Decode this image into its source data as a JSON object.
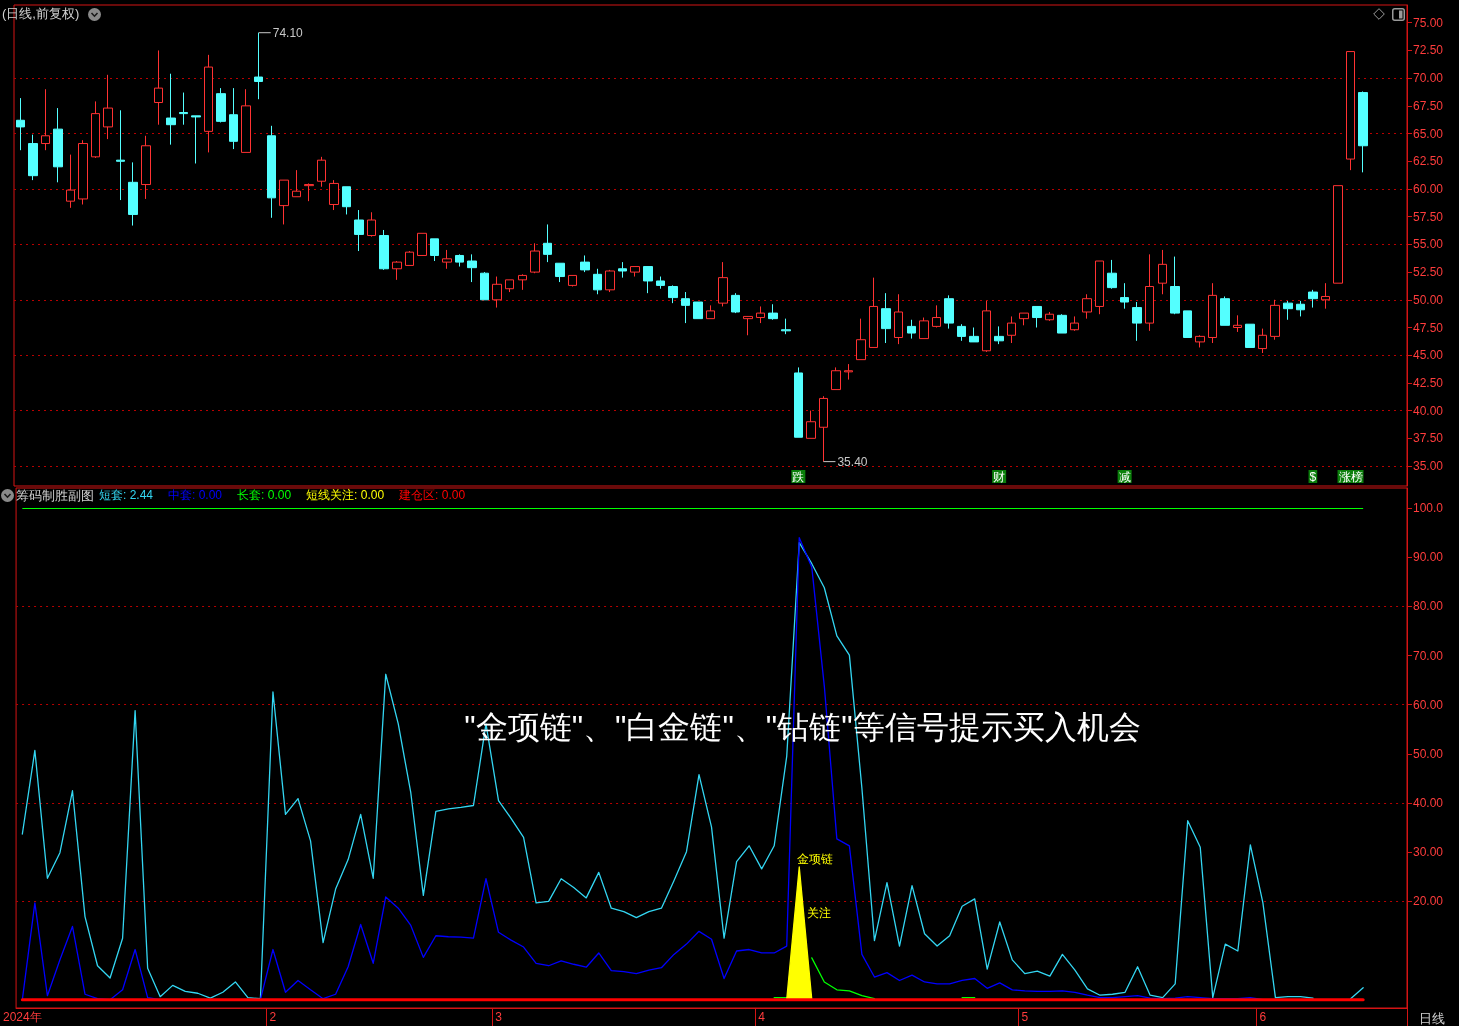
{
  "chart_data": [
    {
      "type": "candlestick",
      "title": "(日线,前复权)",
      "categories": [
        null,
        null,
        null,
        null,
        null,
        null,
        null,
        null,
        null,
        null,
        null,
        null,
        null,
        null,
        null,
        null,
        null,
        null,
        null,
        null,
        null,
        null,
        null,
        null,
        null,
        null,
        null,
        null,
        null,
        null,
        null,
        null,
        null,
        null,
        null,
        null,
        null,
        null,
        null,
        null,
        null,
        null,
        null,
        null,
        null,
        null,
        null,
        null,
        null,
        null,
        null,
        null,
        null,
        null,
        null,
        null,
        null,
        null,
        null,
        null,
        null,
        null,
        "跌",
        null,
        null,
        null,
        null,
        null,
        null,
        null,
        null,
        null,
        null,
        null,
        null,
        null,
        null,
        null,
        "财",
        null,
        null,
        null,
        null,
        null,
        null,
        null,
        null,
        null,
        "减",
        null,
        null,
        null,
        null,
        null,
        null,
        null,
        null,
        null,
        null,
        null,
        null,
        null,
        null,
        "$",
        null,
        null,
        "涨榜",
        null,
        null,
        null,
        null
      ],
      "ohlc": [
        [
          66.2,
          68.2,
          63.5,
          65.6
        ],
        [
          64.1,
          64.9,
          60.8,
          61.2
        ],
        [
          64.1,
          69.0,
          63.5,
          64.8
        ],
        [
          65.4,
          67.3,
          60.6,
          62.0
        ],
        [
          58.9,
          63.1,
          58.3,
          59.9
        ],
        [
          59.1,
          64.4,
          58.6,
          64.1
        ],
        [
          62.9,
          67.9,
          62.8,
          66.8
        ],
        [
          65.6,
          70.3,
          64.5,
          67.3
        ],
        [
          62.6,
          67.1,
          59.0,
          62.5
        ],
        [
          60.6,
          62.4,
          56.7,
          57.7
        ],
        [
          60.4,
          64.8,
          59.1,
          63.9
        ],
        [
          67.8,
          72.5,
          65.8,
          69.1
        ],
        [
          66.4,
          70.4,
          64.0,
          65.8
        ],
        [
          66.9,
          68.7,
          65.8,
          66.8
        ],
        [
          66.6,
          66.6,
          62.3,
          66.5
        ],
        [
          65.2,
          72.1,
          63.3,
          71.0
        ],
        [
          68.6,
          69.1,
          66.0,
          66.1
        ],
        [
          66.7,
          69.1,
          63.6,
          64.3
        ],
        [
          63.3,
          69.0,
          63.3,
          67.5
        ],
        [
          70.1,
          74.1,
          68.1,
          69.7
        ],
        [
          64.8,
          65.7,
          57.4,
          59.2
        ],
        [
          58.5,
          60.8,
          56.8,
          60.8
        ],
        [
          59.3,
          61.7,
          59.3,
          59.8
        ],
        [
          60.3,
          60.5,
          58.9,
          60.4
        ],
        [
          60.7,
          62.9,
          60.2,
          62.6
        ],
        [
          58.6,
          60.8,
          58.1,
          60.5
        ],
        [
          60.2,
          60.2,
          57.7,
          58.4
        ],
        [
          57.2,
          58.1,
          54.4,
          55.9
        ],
        [
          55.8,
          57.9,
          55.7,
          57.2
        ],
        [
          55.8,
          56.3,
          52.7,
          52.8
        ],
        [
          52.8,
          53.5,
          51.8,
          53.4
        ],
        [
          53.1,
          54.4,
          53.1,
          54.3
        ],
        [
          54.0,
          56.0,
          54.0,
          56.0
        ],
        [
          55.5,
          55.5,
          53.5,
          54.0
        ],
        [
          53.4,
          54.5,
          52.8,
          53.7
        ],
        [
          54.0,
          54.1,
          53.0,
          53.4
        ],
        [
          53.5,
          54.1,
          51.6,
          52.9
        ],
        [
          52.4,
          52.5,
          50.0,
          50.0
        ],
        [
          50.0,
          52.1,
          49.3,
          51.4
        ],
        [
          51.0,
          51.8,
          50.7,
          51.8
        ],
        [
          51.8,
          52.3,
          50.9,
          52.2
        ],
        [
          52.5,
          55.1,
          52.4,
          54.4
        ],
        [
          55.1,
          56.8,
          53.4,
          54.1
        ],
        [
          53.3,
          53.3,
          51.6,
          52.1
        ],
        [
          51.3,
          52.2,
          51.2,
          52.2
        ],
        [
          53.4,
          54.0,
          52.5,
          52.7
        ],
        [
          52.3,
          52.8,
          50.5,
          50.9
        ],
        [
          50.9,
          52.7,
          50.7,
          52.6
        ],
        [
          52.8,
          53.4,
          52.0,
          52.6
        ],
        [
          52.5,
          53.0,
          52.1,
          53.0
        ],
        [
          53.0,
          53.0,
          50.6,
          51.7
        ],
        [
          51.7,
          52.1,
          51.0,
          51.3
        ],
        [
          51.2,
          51.3,
          49.7,
          50.2
        ],
        [
          50.1,
          50.7,
          47.9,
          49.5
        ],
        [
          49.8,
          49.8,
          48.3,
          48.3
        ],
        [
          48.3,
          49.5,
          48.3,
          49.0
        ],
        [
          49.7,
          53.4,
          49.4,
          52.0
        ],
        [
          50.4,
          50.6,
          48.8,
          48.9
        ],
        [
          48.3,
          48.5,
          46.8,
          48.5
        ],
        [
          48.4,
          49.4,
          47.9,
          48.8
        ],
        [
          48.8,
          49.6,
          48.2,
          48.3
        ],
        [
          47.3,
          48.3,
          46.9,
          47.2
        ],
        [
          43.4,
          43.9,
          37.6,
          37.6
        ],
        [
          37.5,
          40.0,
          37.5,
          39.0
        ],
        [
          38.5,
          41.3,
          35.4,
          41.1
        ],
        [
          41.9,
          43.9,
          41.9,
          43.6
        ],
        [
          43.5,
          44.2,
          42.8,
          43.6
        ],
        [
          44.6,
          48.3,
          44.6,
          46.4
        ],
        [
          45.7,
          52.0,
          45.7,
          49.4
        ],
        [
          49.2,
          50.6,
          46.1,
          47.4
        ],
        [
          46.6,
          50.5,
          46.0,
          48.9
        ],
        [
          47.6,
          48.2,
          46.5,
          47.0
        ],
        [
          46.5,
          48.4,
          46.5,
          48.1
        ],
        [
          47.6,
          49.5,
          47.5,
          48.4
        ],
        [
          50.1,
          50.4,
          47.4,
          47.9
        ],
        [
          47.6,
          47.8,
          46.3,
          46.7
        ],
        [
          46.7,
          47.5,
          46.2,
          46.2
        ],
        [
          45.4,
          49.9,
          45.3,
          49.0
        ],
        [
          46.7,
          47.6,
          46.0,
          46.3
        ],
        [
          46.8,
          48.5,
          46.1,
          47.9
        ],
        [
          48.3,
          48.8,
          47.7,
          48.8
        ],
        [
          49.4,
          49.4,
          47.5,
          48.4
        ],
        [
          48.2,
          48.9,
          48.1,
          48.7
        ],
        [
          48.6,
          48.7,
          47.0,
          47.0
        ],
        [
          47.3,
          48.5,
          47.2,
          47.9
        ],
        [
          48.9,
          50.5,
          48.3,
          50.1
        ],
        [
          49.4,
          53.5,
          48.7,
          53.5
        ],
        [
          52.4,
          53.6,
          51.0,
          51.1
        ],
        [
          50.2,
          51.5,
          49.2,
          49.8
        ],
        [
          49.3,
          49.8,
          46.3,
          47.9
        ],
        [
          47.9,
          54.1,
          47.2,
          51.2
        ],
        [
          51.5,
          54.5,
          50.5,
          53.2
        ],
        [
          51.2,
          53.9,
          48.7,
          48.8
        ],
        [
          49.0,
          49.0,
          46.6,
          46.6
        ],
        [
          46.2,
          46.8,
          45.7,
          46.7
        ],
        [
          46.6,
          51.5,
          46.1,
          50.4
        ],
        [
          50.1,
          50.3,
          47.7,
          47.7
        ],
        [
          47.5,
          48.6,
          47.1,
          47.7
        ],
        [
          47.8,
          47.8,
          45.7,
          45.7
        ],
        [
          45.6,
          47.4,
          45.2,
          46.8
        ],
        [
          46.7,
          50.0,
          46.4,
          49.5
        ],
        [
          49.7,
          49.9,
          48.2,
          49.2
        ],
        [
          49.6,
          49.9,
          48.5,
          49.1
        ],
        [
          50.7,
          50.9,
          49.3,
          50.1
        ],
        [
          50.0,
          51.5,
          49.2,
          50.3
        ],
        [
          51.5,
          60.3,
          51.5,
          60.3
        ],
        [
          62.7,
          72.4,
          61.7,
          72.4
        ],
        [
          68.7,
          68.8,
          61.5,
          63.9
        ],
        null,
        null,
        null
      ],
      "colors": [
        "#54ffff",
        "#54ffff",
        "#ff3232",
        "#54ffff",
        "#ff3232",
        "#ff3232",
        "#ff3232",
        "#ff3232",
        "#54ffff",
        "#54ffff",
        "#ff3232",
        "#ff3232",
        "#54ffff",
        "#54ffff",
        "#54ffff",
        "#ff3232",
        "#54ffff",
        "#54ffff",
        "#ff3232",
        "#54ffff",
        "#54ffff",
        "#ff3232",
        "#ff3232",
        "#ff3232",
        "#ff3232",
        "#ff3232",
        "#54ffff",
        "#54ffff",
        "#ff3232",
        "#54ffff",
        "#ff3232",
        "#ff3232",
        "#ff3232",
        "#54ffff",
        "#ff3232",
        "#54ffff",
        "#54ffff",
        "#54ffff",
        "#ff3232",
        "#ff3232",
        "#ff3232",
        "#ff3232",
        "#54ffff",
        "#54ffff",
        "#ff3232",
        "#54ffff",
        "#54ffff",
        "#ff3232",
        "#54ffff",
        "#ff3232",
        "#54ffff",
        "#54ffff",
        "#54ffff",
        "#54ffff",
        "#54ffff",
        "#ff3232",
        "#ff3232",
        "#54ffff",
        "#ff3232",
        "#ff3232",
        "#54ffff",
        "#54ffff",
        "#54ffff",
        "#ff3232",
        "#ff3232",
        "#ff3232",
        "#ff3232",
        "#ff3232",
        "#ff3232",
        "#54ffff",
        "#ff3232",
        "#54ffff",
        "#ff3232",
        "#ff3232",
        "#54ffff",
        "#54ffff",
        "#54ffff",
        "#ff3232",
        "#54ffff",
        "#ff3232",
        "#ff3232",
        "#54ffff",
        "#ff3232",
        "#54ffff",
        "#ff3232",
        "#ff3232",
        "#ff3232",
        "#54ffff",
        "#54ffff",
        "#54ffff",
        "#ff3232",
        "#ff3232",
        "#54ffff",
        "#54ffff",
        "#ff3232",
        "#ff3232",
        "#54ffff",
        "#ff3232",
        "#54ffff",
        "#ff3232",
        "#ff3232",
        "#54ffff",
        "#54ffff",
        "#54ffff",
        "#ff3232",
        "#ff3232",
        "#ff3232",
        "#54ffff",
        null,
        null,
        null
      ],
      "value_labels": [
        null,
        null,
        null,
        null,
        null,
        null,
        null,
        null,
        null,
        null,
        null,
        null,
        null,
        null,
        null,
        null,
        null,
        null,
        null,
        "74.10",
        null,
        null,
        null,
        null,
        null,
        null,
        null,
        null,
        null,
        null,
        null,
        null,
        null,
        null,
        null,
        null,
        null,
        null,
        null,
        null,
        null,
        null,
        null,
        null,
        null,
        null,
        null,
        null,
        null,
        null,
        null,
        null,
        null,
        null,
        null,
        null,
        null,
        null,
        null,
        null,
        null,
        null,
        null,
        null,
        "35.40",
        null,
        null,
        null,
        null,
        null,
        null,
        null,
        null,
        null,
        null,
        null,
        null,
        null,
        null,
        null,
        null,
        null,
        null,
        null,
        null,
        null,
        null,
        null,
        null,
        null,
        null,
        null,
        null,
        null,
        null,
        null,
        null,
        null,
        null,
        null,
        null,
        null,
        null,
        null,
        null,
        null,
        null,
        null,
        null,
        null,
        null
      ],
      "ylim": [
        33.2,
        76.6
      ],
      "yticks": [
        {
          "value": 35,
          "label": "35.00"
        },
        {
          "value": 37.5,
          "label": "37.50"
        },
        {
          "value": 40,
          "label": "40.00"
        },
        {
          "value": 42.5,
          "label": "42.50"
        },
        {
          "value": 45,
          "label": "45.00"
        },
        {
          "value": 47.5,
          "label": "47.50"
        },
        {
          "value": 50,
          "label": "50.00"
        },
        {
          "value": 52.5,
          "label": "52.50"
        },
        {
          "value": 55,
          "label": "55.00"
        },
        {
          "value": 57.5,
          "label": "57.50"
        },
        {
          "value": 60,
          "label": "60.00"
        },
        {
          "value": 62.5,
          "label": "62.50"
        },
        {
          "value": 65,
          "label": "65.00"
        },
        {
          "value": 67.5,
          "label": "67.50"
        },
        {
          "value": 70,
          "label": "70.00"
        },
        {
          "value": 72.5,
          "label": "72.50"
        },
        {
          "value": 75,
          "label": "75.00"
        }
      ],
      "grid": "y"
    },
    {
      "type": "line",
      "title": "筹码制胜副图",
      "xlabel": "日线",
      "categories": [
        "2024年",
        null,
        null,
        null,
        null,
        null,
        null,
        null,
        null,
        null,
        null,
        null,
        null,
        null,
        null,
        null,
        null,
        null,
        null,
        null,
        "2",
        null,
        null,
        null,
        null,
        null,
        null,
        null,
        null,
        null,
        null,
        null,
        null,
        null,
        null,
        null,
        null,
        null,
        "3",
        null,
        null,
        null,
        null,
        null,
        null,
        null,
        null,
        null,
        null,
        null,
        null,
        null,
        null,
        null,
        null,
        null,
        null,
        null,
        null,
        "4",
        null,
        null,
        null,
        null,
        null,
        null,
        null,
        null,
        null,
        null,
        null,
        null,
        null,
        null,
        null,
        null,
        null,
        null,
        null,
        null,
        "5",
        null,
        null,
        null,
        null,
        null,
        null,
        null,
        null,
        null,
        null,
        null,
        null,
        null,
        null,
        null,
        null,
        null,
        null,
        "6",
        null,
        null,
        null,
        null,
        null,
        null,
        null,
        null,
        null,
        null,
        null
      ],
      "series": [
        {
          "name": "短套: 2.44",
          "color": "#33d6f2",
          "values": [
            33.7,
            50.7,
            24.7,
            29.9,
            42.5,
            16.9,
            6.9,
            4.4,
            12.5,
            58.8,
            6.4,
            0.6,
            2.9,
            1.7,
            1.3,
            0.3,
            1.5,
            3.6,
            0.4,
            0.2,
            62.6,
            37.7,
            40.9,
            32.3,
            11.6,
            22.5,
            28.5,
            37.7,
            24.7,
            66.2,
            56.1,
            42.1,
            21.2,
            38.3,
            38.8,
            39.1,
            39.5,
            56.1,
            40.5,
            36.9,
            33.0,
            19.7,
            20.0,
            24.6,
            22.8,
            20.7,
            25.9,
            18.6,
            17.9,
            16.7,
            17.9,
            18.6,
            24.2,
            30.1,
            45.8,
            35.1,
            12.5,
            28.1,
            31.3,
            26.6,
            31.3,
            49.5,
            93,
            88.7,
            83.8,
            74.0,
            70.1,
            43,
            12.0,
            23.8,
            10.9,
            23.2,
            13.4,
            10.9,
            13.0,
            19.0,
            20.5,
            6.2,
            15.8,
            8.1,
            5.3,
            5.8,
            4.8,
            9.2,
            6.0,
            2.2,
            0.9,
            1.1,
            1.5,
            6.7,
            0.9,
            0.4,
            3.2,
            36.4,
            31.0,
            0.4,
            11.3,
            9.9,
            31.5,
            19.7,
            0.4,
            0.6,
            0.6,
            0.3,
            null,
            null,
            0.2,
            2.44,
            null,
            null,
            null
          ]
        },
        {
          "name": "中套: 0.00",
          "color": "#0000ff",
          "values": [
            0,
            19.7,
            0.8,
            8.1,
            14.9,
            1.1,
            0.2,
            0,
            2.0,
            10.2,
            0.4,
            0,
            null,
            null,
            null,
            null,
            null,
            null,
            null,
            0,
            10.2,
            1.5,
            3.9,
            2.0,
            0.2,
            1.1,
            6.7,
            15.3,
            7.4,
            20.9,
            18.6,
            15.1,
            8.6,
            13.0,
            12.8,
            12.7,
            12.5,
            24.6,
            13.7,
            12.1,
            10.7,
            7.4,
            6.9,
            7.9,
            7.2,
            6.6,
            9.5,
            5.9,
            5.7,
            5.3,
            6.0,
            6.5,
            9.2,
            11.3,
            13.9,
            12.3,
            4.3,
            9.9,
            10.2,
            9.5,
            9.5,
            10.9,
            94,
            88.0,
            63.8,
            32.7,
            31.3,
            9.2,
            4.6,
            5.5,
            3.9,
            5.0,
            3.6,
            3.2,
            3.2,
            3.9,
            4.3,
            2.3,
            3.4,
            2.0,
            1.8,
            1.7,
            1.7,
            1.8,
            1.5,
            0.9,
            0.4,
            0.4,
            0.6,
            0.8,
            0.3,
            0.2,
            0.3,
            0.6,
            0.4,
            0.2,
            0.2,
            0.2,
            0.4,
            0,
            null,
            null,
            null,
            null,
            null,
            null,
            null,
            null,
            null,
            null,
            null
          ]
        },
        {
          "name": "长套: 0.00",
          "color": "#00ff00",
          "values": [
            null,
            null,
            null,
            null,
            null,
            null,
            null,
            null,
            null,
            null,
            null,
            null,
            null,
            null,
            null,
            null,
            null,
            null,
            null,
            null,
            null,
            null,
            null,
            null,
            null,
            null,
            null,
            null,
            null,
            null,
            null,
            null,
            null,
            null,
            null,
            null,
            null,
            null,
            null,
            null,
            null,
            null,
            null,
            null,
            null,
            null,
            null,
            null,
            null,
            null,
            null,
            null,
            null,
            null,
            null,
            null,
            null,
            null,
            null,
            null,
            0.4,
            0.4,
            null,
            8.5,
            3.6,
            2.0,
            1.8,
            0.8,
            0.2,
            null,
            null,
            null,
            null,
            null,
            null,
            0.4,
            0.4,
            null,
            null,
            null,
            null,
            null,
            null,
            null,
            null,
            null,
            null,
            null,
            null,
            null,
            null,
            null,
            null,
            null,
            null,
            null,
            null,
            null,
            null,
            null,
            null,
            null,
            null,
            null,
            null,
            null,
            null,
            null,
            null,
            null,
            null
          ]
        },
        {
          "name": "短线关注: 0.00",
          "type": "area",
          "color": "#ffff00",
          "values": [
            null,
            null,
            null,
            null,
            null,
            null,
            null,
            null,
            null,
            null,
            null,
            null,
            null,
            null,
            null,
            null,
            null,
            null,
            null,
            null,
            null,
            null,
            null,
            null,
            null,
            null,
            null,
            null,
            null,
            null,
            null,
            null,
            null,
            null,
            null,
            null,
            null,
            null,
            null,
            null,
            null,
            null,
            null,
            null,
            null,
            null,
            null,
            null,
            null,
            null,
            null,
            null,
            null,
            null,
            null,
            null,
            null,
            null,
            null,
            null,
            null,
            0,
            27,
            0,
            null,
            null,
            null,
            null,
            null,
            null,
            null,
            null,
            null,
            null,
            null,
            null,
            null,
            null,
            null,
            null,
            null,
            null,
            null,
            null,
            null,
            null,
            null,
            null,
            null,
            null,
            null,
            null,
            null,
            null,
            null,
            null,
            null,
            null,
            null,
            null,
            null,
            null,
            null,
            null,
            null,
            null,
            null,
            null,
            null,
            null,
            null
          ],
          "value_labels": [
            null,
            null,
            null,
            null,
            null,
            null,
            null,
            null,
            null,
            null,
            null,
            null,
            null,
            null,
            null,
            null,
            null,
            null,
            null,
            null,
            null,
            null,
            null,
            null,
            null,
            null,
            null,
            null,
            null,
            null,
            null,
            null,
            null,
            null,
            null,
            null,
            null,
            null,
            null,
            null,
            null,
            null,
            null,
            null,
            null,
            null,
            null,
            null,
            null,
            null,
            null,
            null,
            null,
            null,
            null,
            null,
            null,
            null,
            null,
            null,
            null,
            null,
            "金项链",
            null,
            null,
            null,
            null,
            null,
            null,
            null,
            null,
            null,
            null,
            null,
            null,
            null,
            null,
            null,
            null,
            null,
            null,
            null,
            null,
            null,
            null,
            null,
            null,
            null,
            null,
            null,
            null,
            null,
            null,
            null,
            null,
            null,
            null,
            null,
            null,
            null,
            null,
            null,
            null,
            null,
            null,
            null,
            null,
            null,
            null,
            null,
            null
          ]
        },
        {
          "name": "建仓区: 0.00",
          "color": "#ff0000",
          "values": [
            0,
            0,
            0,
            0,
            0,
            0,
            0,
            0,
            0,
            0,
            0,
            0,
            0,
            0,
            0,
            0,
            0,
            0,
            0,
            0,
            0,
            0,
            0,
            0,
            0,
            0,
            0,
            0,
            0,
            0,
            0,
            0,
            0,
            0,
            0,
            0,
            0,
            0,
            0,
            0,
            0,
            0,
            0,
            0,
            0,
            0,
            0,
            0,
            0,
            0,
            0,
            0,
            0,
            0,
            0,
            0,
            0,
            0,
            0,
            0,
            0,
            0,
            0,
            0,
            0,
            0,
            0,
            0,
            0,
            0,
            0,
            0,
            0,
            0,
            0,
            0,
            0,
            0,
            0,
            0,
            0,
            0,
            0,
            0,
            0,
            0,
            0,
            0,
            0,
            0,
            0,
            0,
            0,
            0,
            0,
            0,
            0,
            0,
            0,
            0,
            0,
            0,
            0,
            0,
            0,
            0,
            0,
            0,
            null,
            null,
            null
          ]
        }
      ],
      "ylim": [
        -1.7,
        104.1
      ],
      "yticks": [
        {
          "value": 20,
          "label": "20.00"
        },
        {
          "value": 30,
          "label": "30.00"
        },
        {
          "value": 40,
          "label": "40.00"
        },
        {
          "value": 50,
          "label": "50.00"
        },
        {
          "value": 60,
          "label": "60.00"
        },
        {
          "value": 70,
          "label": "70.00"
        },
        {
          "value": 80,
          "label": "80.00"
        },
        {
          "value": 90,
          "label": "90.00"
        },
        {
          "value": 100,
          "label": "100.0"
        }
      ],
      "grid": "y",
      "legend": "top left",
      "marker": "none",
      "ref_lines": [
        {
          "axis": "y",
          "value": 100,
          "color": "#00ff00"
        }
      ],
      "annotations": [
        "\"金项链\"、\"白金链\"、\"钻链\"等信号提示买入机会",
        "关注"
      ]
    }
  ]
}
